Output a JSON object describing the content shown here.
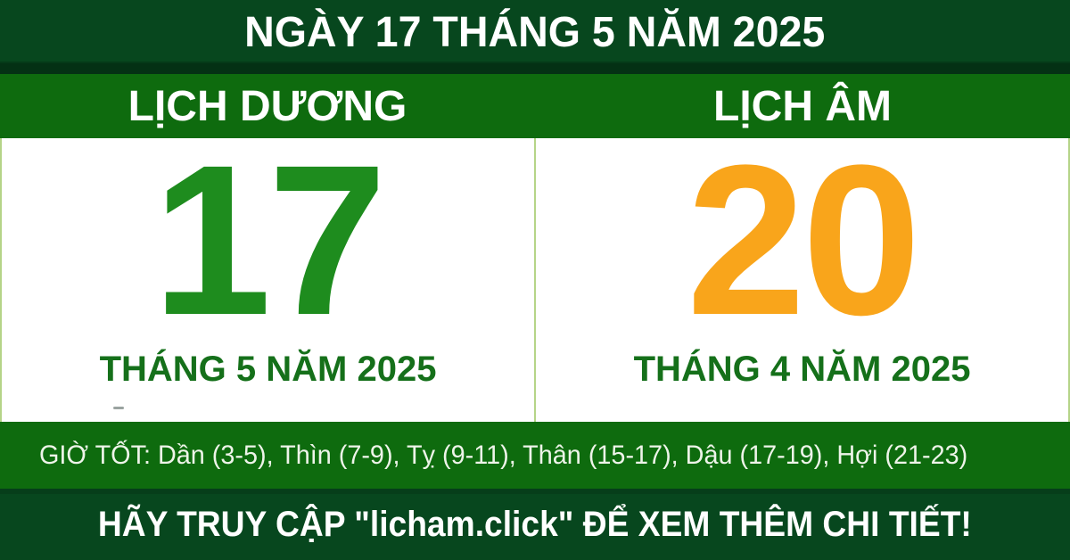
{
  "banner": {
    "title": "NGÀY 17 THÁNG 5 NĂM 2025"
  },
  "calendar": {
    "solar": {
      "header": "LỊCH DƯƠNG",
      "day": "17",
      "month_year": "THÁNG 5 NĂM 2025"
    },
    "lunar": {
      "header": "LỊCH ÂM",
      "day": "20",
      "month_year": "THÁNG 4 NĂM 2025"
    }
  },
  "good_hours": {
    "label": "GIỜ TỐT:",
    "slots": [
      {
        "name": "Dần",
        "range": "3-5"
      },
      {
        "name": "Thìn",
        "range": "7-9"
      },
      {
        "name": "Tỵ",
        "range": "9-11"
      },
      {
        "name": "Thân",
        "range": "15-17"
      },
      {
        "name": "Dậu",
        "range": "17-19"
      },
      {
        "name": "Hợi",
        "range": "21-23"
      }
    ],
    "text": "GIỜ TỐT: Dần (3-5), Thìn (7-9), Tỵ (9-11), Thân (15-17), Dậu (17-19), Hợi (21-23)"
  },
  "footer": {
    "text": "HÃY TRUY CẬP \"licham.click\" ĐỂ XEM THÊM CHI TIẾT!"
  },
  "colors": {
    "dark_green": "#07471e",
    "medium_green": "#0e6b0e",
    "solar_day_green": "#1e8c1e",
    "month_label_green": "#15701a",
    "lunar_day_orange": "#f9a51b",
    "divider_light_green": "#b5d488",
    "text_white": "#ffffff",
    "good_hours_text": "#eef4e9"
  }
}
